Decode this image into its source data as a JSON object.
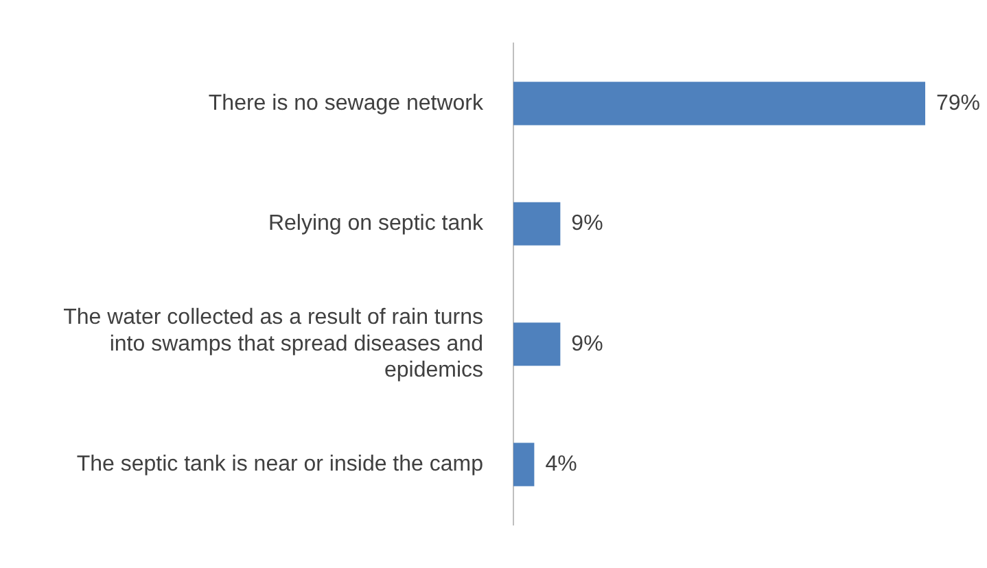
{
  "chart_data": {
    "type": "bar",
    "orientation": "horizontal",
    "categories": [
      "There is no sewage network",
      "Relying on septic tank",
      "The water collected as a result of rain turns into swamps that spread diseases and epidemics",
      "The septic tank is near or inside the camp"
    ],
    "values": [
      79,
      9,
      9,
      4
    ],
    "color": "#4f81bd",
    "value_labels": [
      "79%",
      "9%",
      "9%",
      "4%"
    ],
    "legend": false
  }
}
